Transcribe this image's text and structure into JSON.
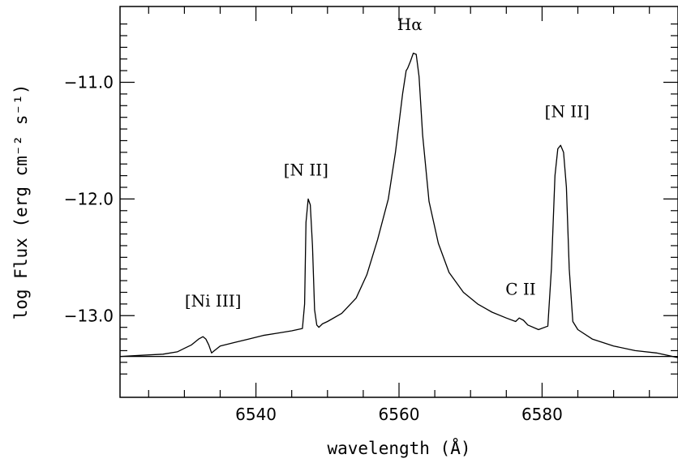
{
  "chart_data": {
    "type": "line",
    "title": "",
    "xlabel": "wavelength (Å)",
    "ylabel": "log Flux (erg cm⁻² s⁻¹)",
    "xlim": [
      6521,
      6599
    ],
    "ylim": [
      -13.7,
      -10.35
    ],
    "xticks": [
      6540,
      6560,
      6580
    ],
    "xtick_labels": [
      "6540",
      "6560",
      "6580"
    ],
    "yticks": [
      -11.0,
      -12.0,
      -13.0
    ],
    "ytick_labels": [
      "−11.0",
      "−12.0",
      "−13.0"
    ],
    "grid": false,
    "legend": "none",
    "continuum_level": -13.35,
    "series": [
      {
        "x": [
          6521,
          6524,
          6527,
          6529,
          6530,
          6531,
          6532,
          6532.6,
          6533.0,
          6533.4,
          6533.8,
          6534.2,
          6535,
          6537,
          6539,
          6541,
          6543,
          6545,
          6546.5,
          6546.8,
          6547.0,
          6547.3,
          6547.6,
          6547.9,
          6548.2,
          6548.5,
          6548.8,
          6549.3,
          6550,
          6552,
          6554,
          6555.5,
          6557,
          6558.5,
          6559.5,
          6560.5,
          6561.0,
          6561.2,
          6561.6,
          6562.0,
          6562.4,
          6562.8,
          6563.3,
          6564.2,
          6565.5,
          6567,
          6569,
          6571,
          6573,
          6575,
          6576.3,
          6576.8,
          6577.4,
          6578,
          6579.5,
          6580.8,
          6581.3,
          6581.8,
          6582.2,
          6582.6,
          6583.0,
          6583.4,
          6583.8,
          6584.3,
          6585,
          6587,
          6590,
          6593,
          6596,
          6599
        ],
        "y": [
          -13.35,
          -13.34,
          -13.33,
          -13.31,
          -13.28,
          -13.25,
          -13.2,
          -13.18,
          -13.2,
          -13.25,
          -13.32,
          -13.3,
          -13.26,
          -13.23,
          -13.2,
          -13.17,
          -13.15,
          -13.13,
          -13.11,
          -12.9,
          -12.2,
          -12.0,
          -12.05,
          -12.4,
          -12.95,
          -13.08,
          -13.1,
          -13.07,
          -13.05,
          -12.98,
          -12.85,
          -12.65,
          -12.35,
          -12.0,
          -11.6,
          -11.1,
          -10.9,
          -10.88,
          -10.82,
          -10.75,
          -10.76,
          -10.95,
          -11.45,
          -12.02,
          -12.38,
          -12.63,
          -12.8,
          -12.9,
          -12.97,
          -13.02,
          -13.05,
          -13.02,
          -13.04,
          -13.08,
          -13.12,
          -13.09,
          -12.6,
          -11.8,
          -11.57,
          -11.54,
          -11.6,
          -11.9,
          -12.6,
          -13.05,
          -13.12,
          -13.2,
          -13.26,
          -13.3,
          -13.32,
          -13.36
        ]
      }
    ],
    "annotations": [
      {
        "text": "Hα",
        "x": 6561.5,
        "y": -10.55
      },
      {
        "text": "[N  II]",
        "x": 6547.0,
        "y": -11.8
      },
      {
        "text": "[N  II]",
        "x": 6583.5,
        "y": -11.3
      },
      {
        "text": "C  II",
        "x": 6577.0,
        "y": -12.82
      },
      {
        "text": "[Ni  III]",
        "x": 6534.0,
        "y": -12.92
      }
    ]
  }
}
